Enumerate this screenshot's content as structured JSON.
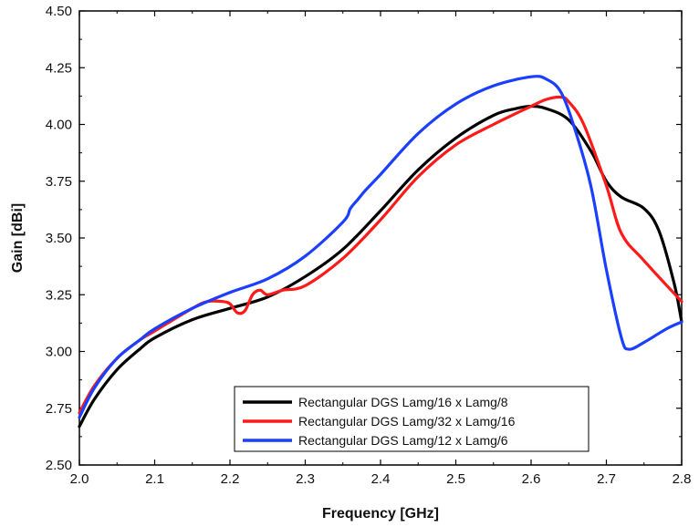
{
  "chart_data": {
    "type": "line",
    "title": "",
    "xlabel": "Frequency [GHz]",
    "ylabel": "Gain [dBi]",
    "xlim": [
      2.0,
      2.8
    ],
    "ylim": [
      2.5,
      4.5
    ],
    "x_ticks": [
      2.0,
      2.1,
      2.2,
      2.3,
      2.4,
      2.5,
      2.6,
      2.7,
      2.8
    ],
    "x_tick_labels": [
      "2.0",
      "2.1",
      "2.2",
      "2.3",
      "2.4",
      "2.5",
      "2.6",
      "2.7",
      "2.8"
    ],
    "y_ticks": [
      2.5,
      2.75,
      3.0,
      3.25,
      3.5,
      3.75,
      4.0,
      4.25,
      4.5
    ],
    "y_tick_labels": [
      "2.50",
      "2.75",
      "3.00",
      "3.25",
      "3.50",
      "3.75",
      "4.00",
      "4.25",
      "4.50"
    ],
    "grid": false,
    "legend_position": "bottom-center",
    "series": [
      {
        "name": "Rectangular DGS Lamg/16 x Lamg/8",
        "color": "#000000",
        "x": [
          2.0,
          2.02,
          2.05,
          2.08,
          2.1,
          2.15,
          2.2,
          2.25,
          2.3,
          2.35,
          2.4,
          2.45,
          2.5,
          2.55,
          2.58,
          2.6,
          2.62,
          2.65,
          2.68,
          2.7,
          2.72,
          2.75,
          2.77,
          2.79,
          2.8
        ],
        "y": [
          2.67,
          2.79,
          2.92,
          3.01,
          3.06,
          3.14,
          3.19,
          3.24,
          3.33,
          3.45,
          3.62,
          3.8,
          3.94,
          4.04,
          4.07,
          4.08,
          4.07,
          4.02,
          3.88,
          3.75,
          3.68,
          3.63,
          3.53,
          3.3,
          3.13
        ]
      },
      {
        "name": "Rectangular DGS Lamg/32 x Lamg/16",
        "color": "#ff1a1a",
        "x": [
          2.0,
          2.02,
          2.05,
          2.08,
          2.1,
          2.15,
          2.17,
          2.19,
          2.2,
          2.21,
          2.22,
          2.23,
          2.24,
          2.25,
          2.27,
          2.3,
          2.35,
          2.4,
          2.45,
          2.5,
          2.55,
          2.6,
          2.62,
          2.64,
          2.65,
          2.67,
          2.7,
          2.72,
          2.75,
          2.8
        ],
        "y": [
          2.73,
          2.85,
          2.97,
          3.05,
          3.09,
          3.19,
          3.22,
          3.22,
          3.21,
          3.17,
          3.18,
          3.25,
          3.27,
          3.25,
          3.27,
          3.29,
          3.41,
          3.58,
          3.77,
          3.91,
          4.0,
          4.08,
          4.11,
          4.12,
          4.1,
          4.0,
          3.73,
          3.52,
          3.4,
          3.22
        ]
      },
      {
        "name": "Rectangular DGS Lamg/12 x Lamg/6",
        "color": "#1a3fff",
        "x": [
          2.0,
          2.02,
          2.05,
          2.08,
          2.1,
          2.15,
          2.2,
          2.25,
          2.3,
          2.35,
          2.36,
          2.37,
          2.38,
          2.4,
          2.45,
          2.5,
          2.55,
          2.6,
          2.62,
          2.64,
          2.66,
          2.68,
          2.7,
          2.72,
          2.73,
          2.75,
          2.78,
          2.8
        ],
        "y": [
          2.71,
          2.84,
          2.97,
          3.05,
          3.1,
          3.19,
          3.26,
          3.32,
          3.42,
          3.57,
          3.63,
          3.67,
          3.71,
          3.78,
          3.96,
          4.09,
          4.17,
          4.21,
          4.2,
          4.14,
          3.96,
          3.72,
          3.36,
          3.06,
          3.01,
          3.04,
          3.1,
          3.13
        ]
      }
    ]
  }
}
